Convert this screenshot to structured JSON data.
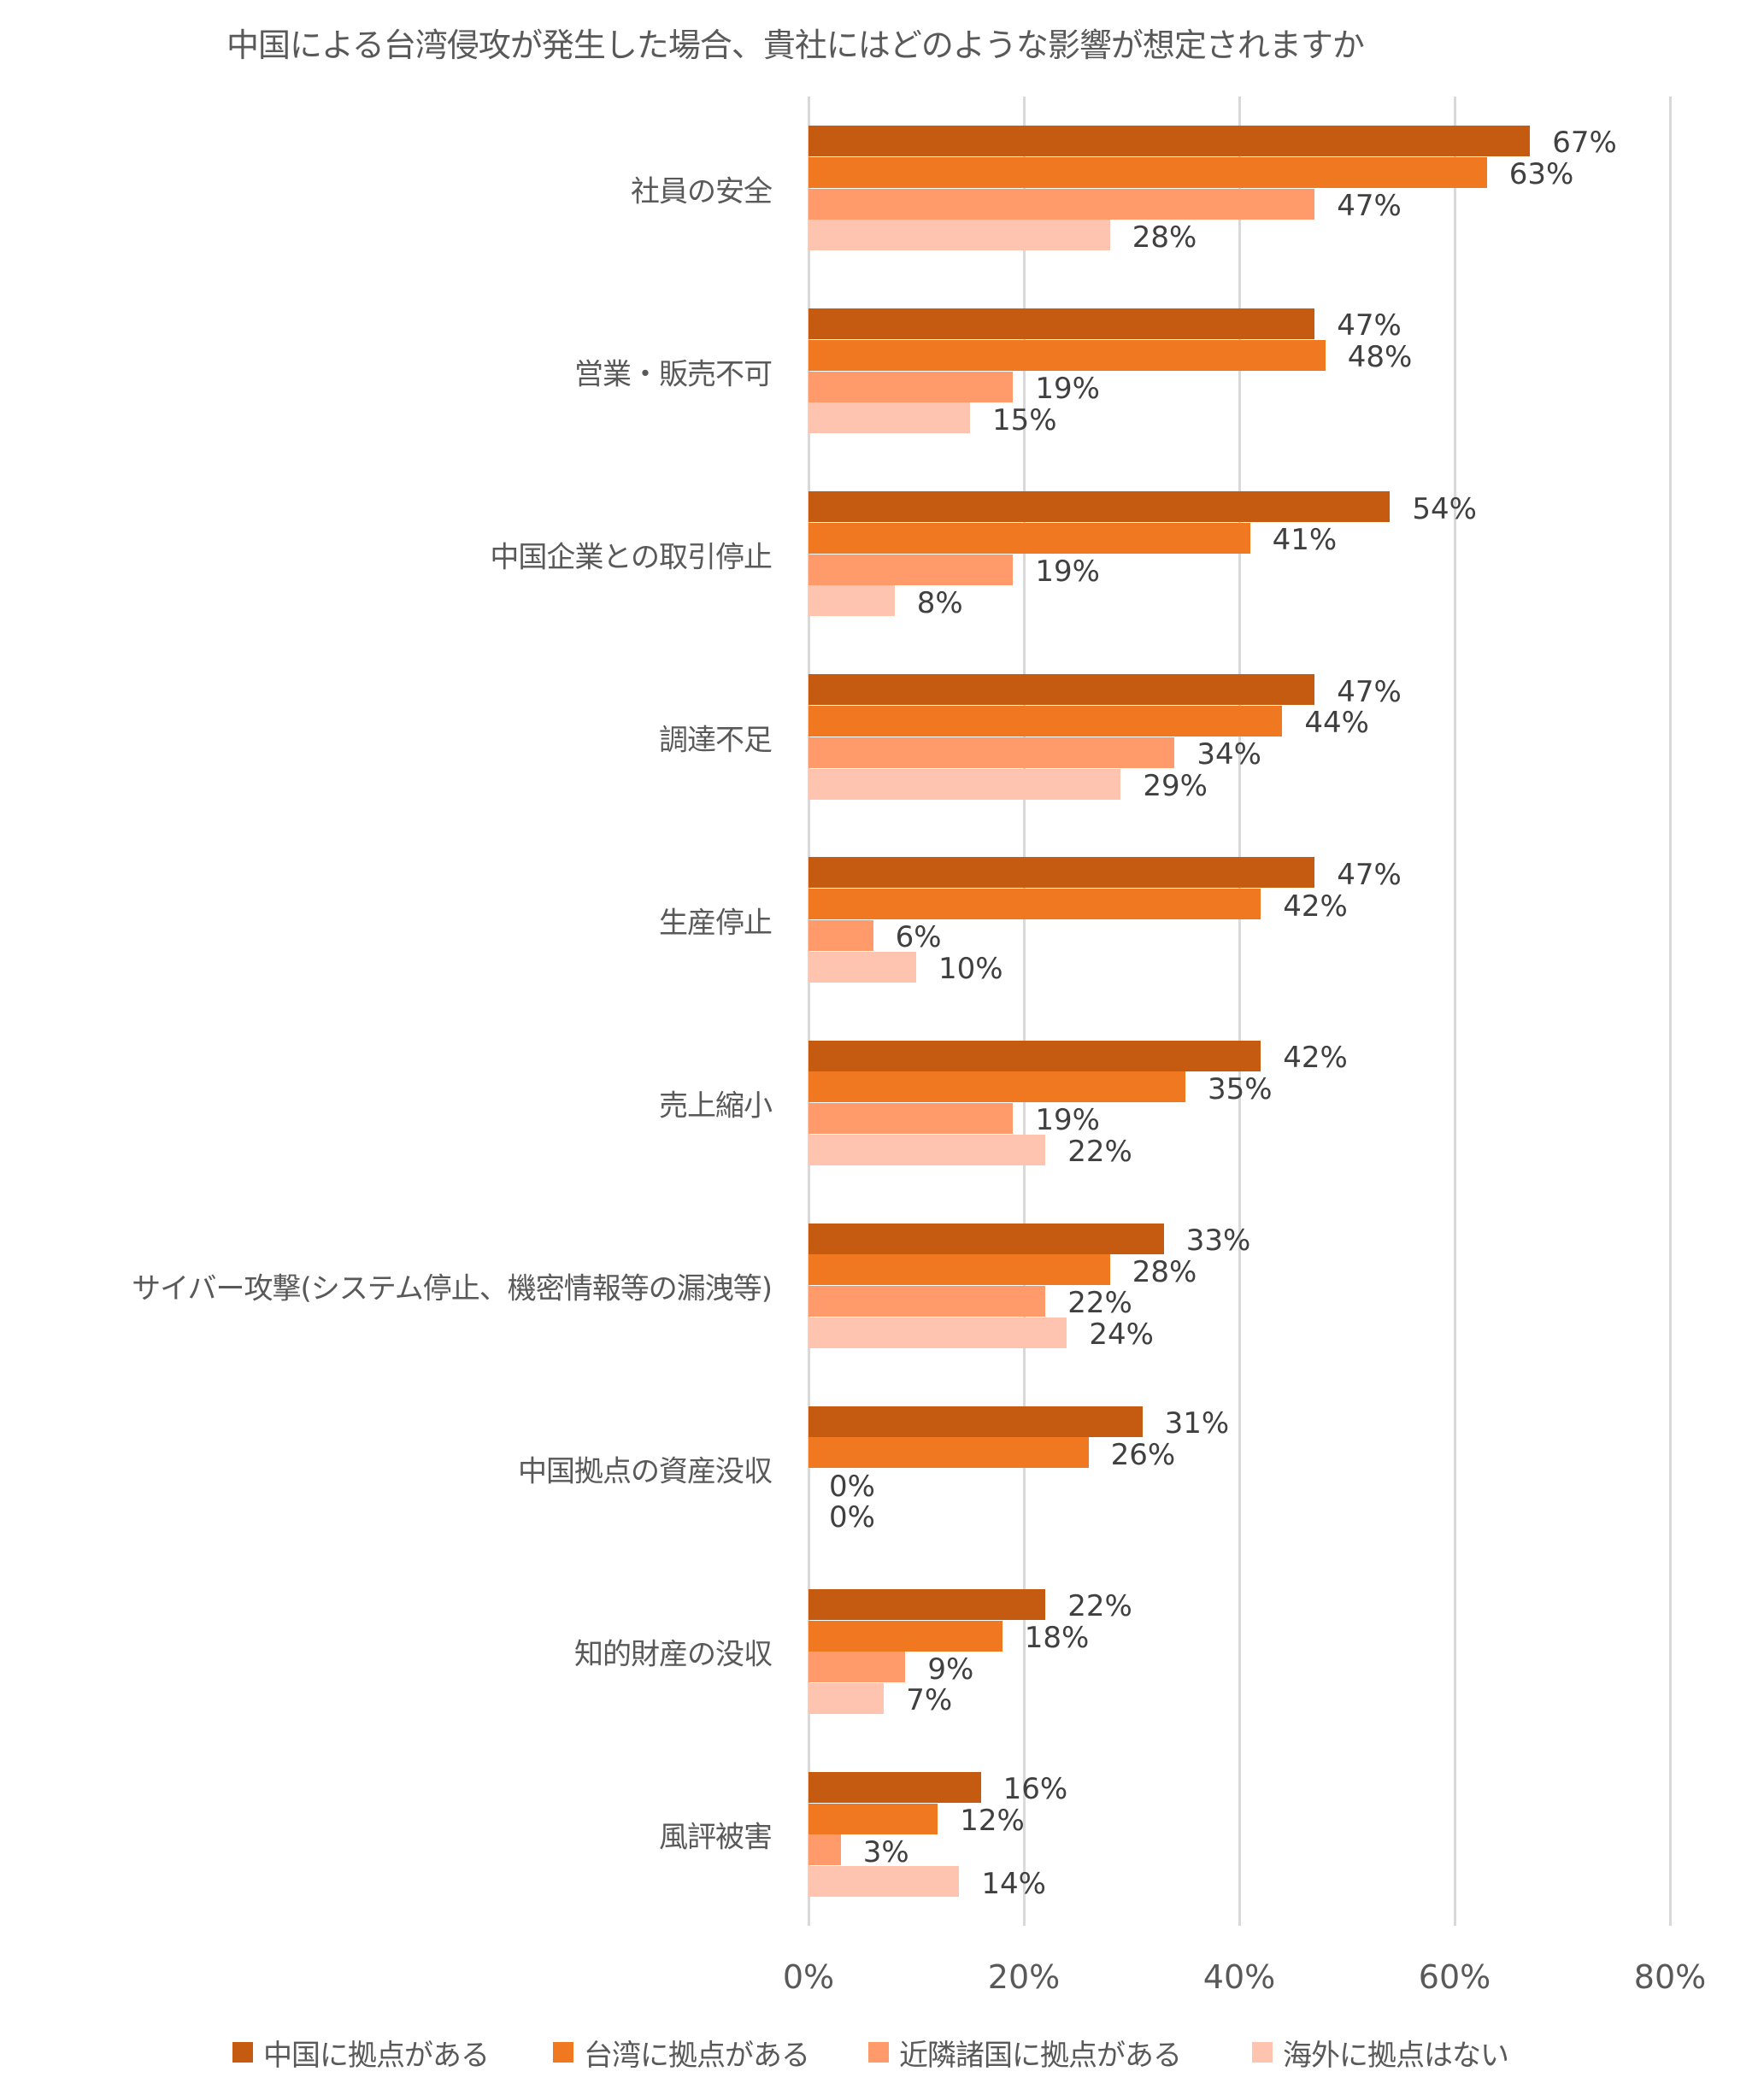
{
  "chart_data": {
    "type": "bar",
    "orientation": "horizontal",
    "title": "中国による台湾侵攻が発生した場合、貴社にはどのような影響が想定されますか",
    "xlabel": "",
    "ylabel": "",
    "xlim": [
      0,
      80
    ],
    "xticks": [
      "0%",
      "20%",
      "40%",
      "60%",
      "80%"
    ],
    "grid": true,
    "legend_position": "bottom",
    "categories": [
      "社員の安全",
      "営業・販売不可",
      "中国企業との取引停止",
      "調達不足",
      "生産停止",
      "売上縮小",
      "サイバー攻撃(システム停止、機密情報等の漏洩等)",
      "中国拠点の資産没収",
      "知的財産の没収",
      "風評被害"
    ],
    "series": [
      {
        "name": "中国に拠点がある",
        "color": "#C55A11",
        "values": [
          67,
          47,
          54,
          47,
          47,
          42,
          33,
          31,
          22,
          16
        ]
      },
      {
        "name": "台湾に拠点がある",
        "color": "#F07820",
        "values": [
          63,
          48,
          41,
          44,
          42,
          35,
          28,
          26,
          18,
          12
        ]
      },
      {
        "name": "近隣諸国に拠点がある",
        "color": "#FF9B6B",
        "values": [
          47,
          19,
          19,
          34,
          6,
          19,
          22,
          0,
          9,
          3
        ]
      },
      {
        "name": "海外に拠点はない",
        "color": "#FFC4B0",
        "values": [
          28,
          15,
          8,
          29,
          10,
          22,
          24,
          0,
          7,
          14
        ]
      }
    ]
  }
}
